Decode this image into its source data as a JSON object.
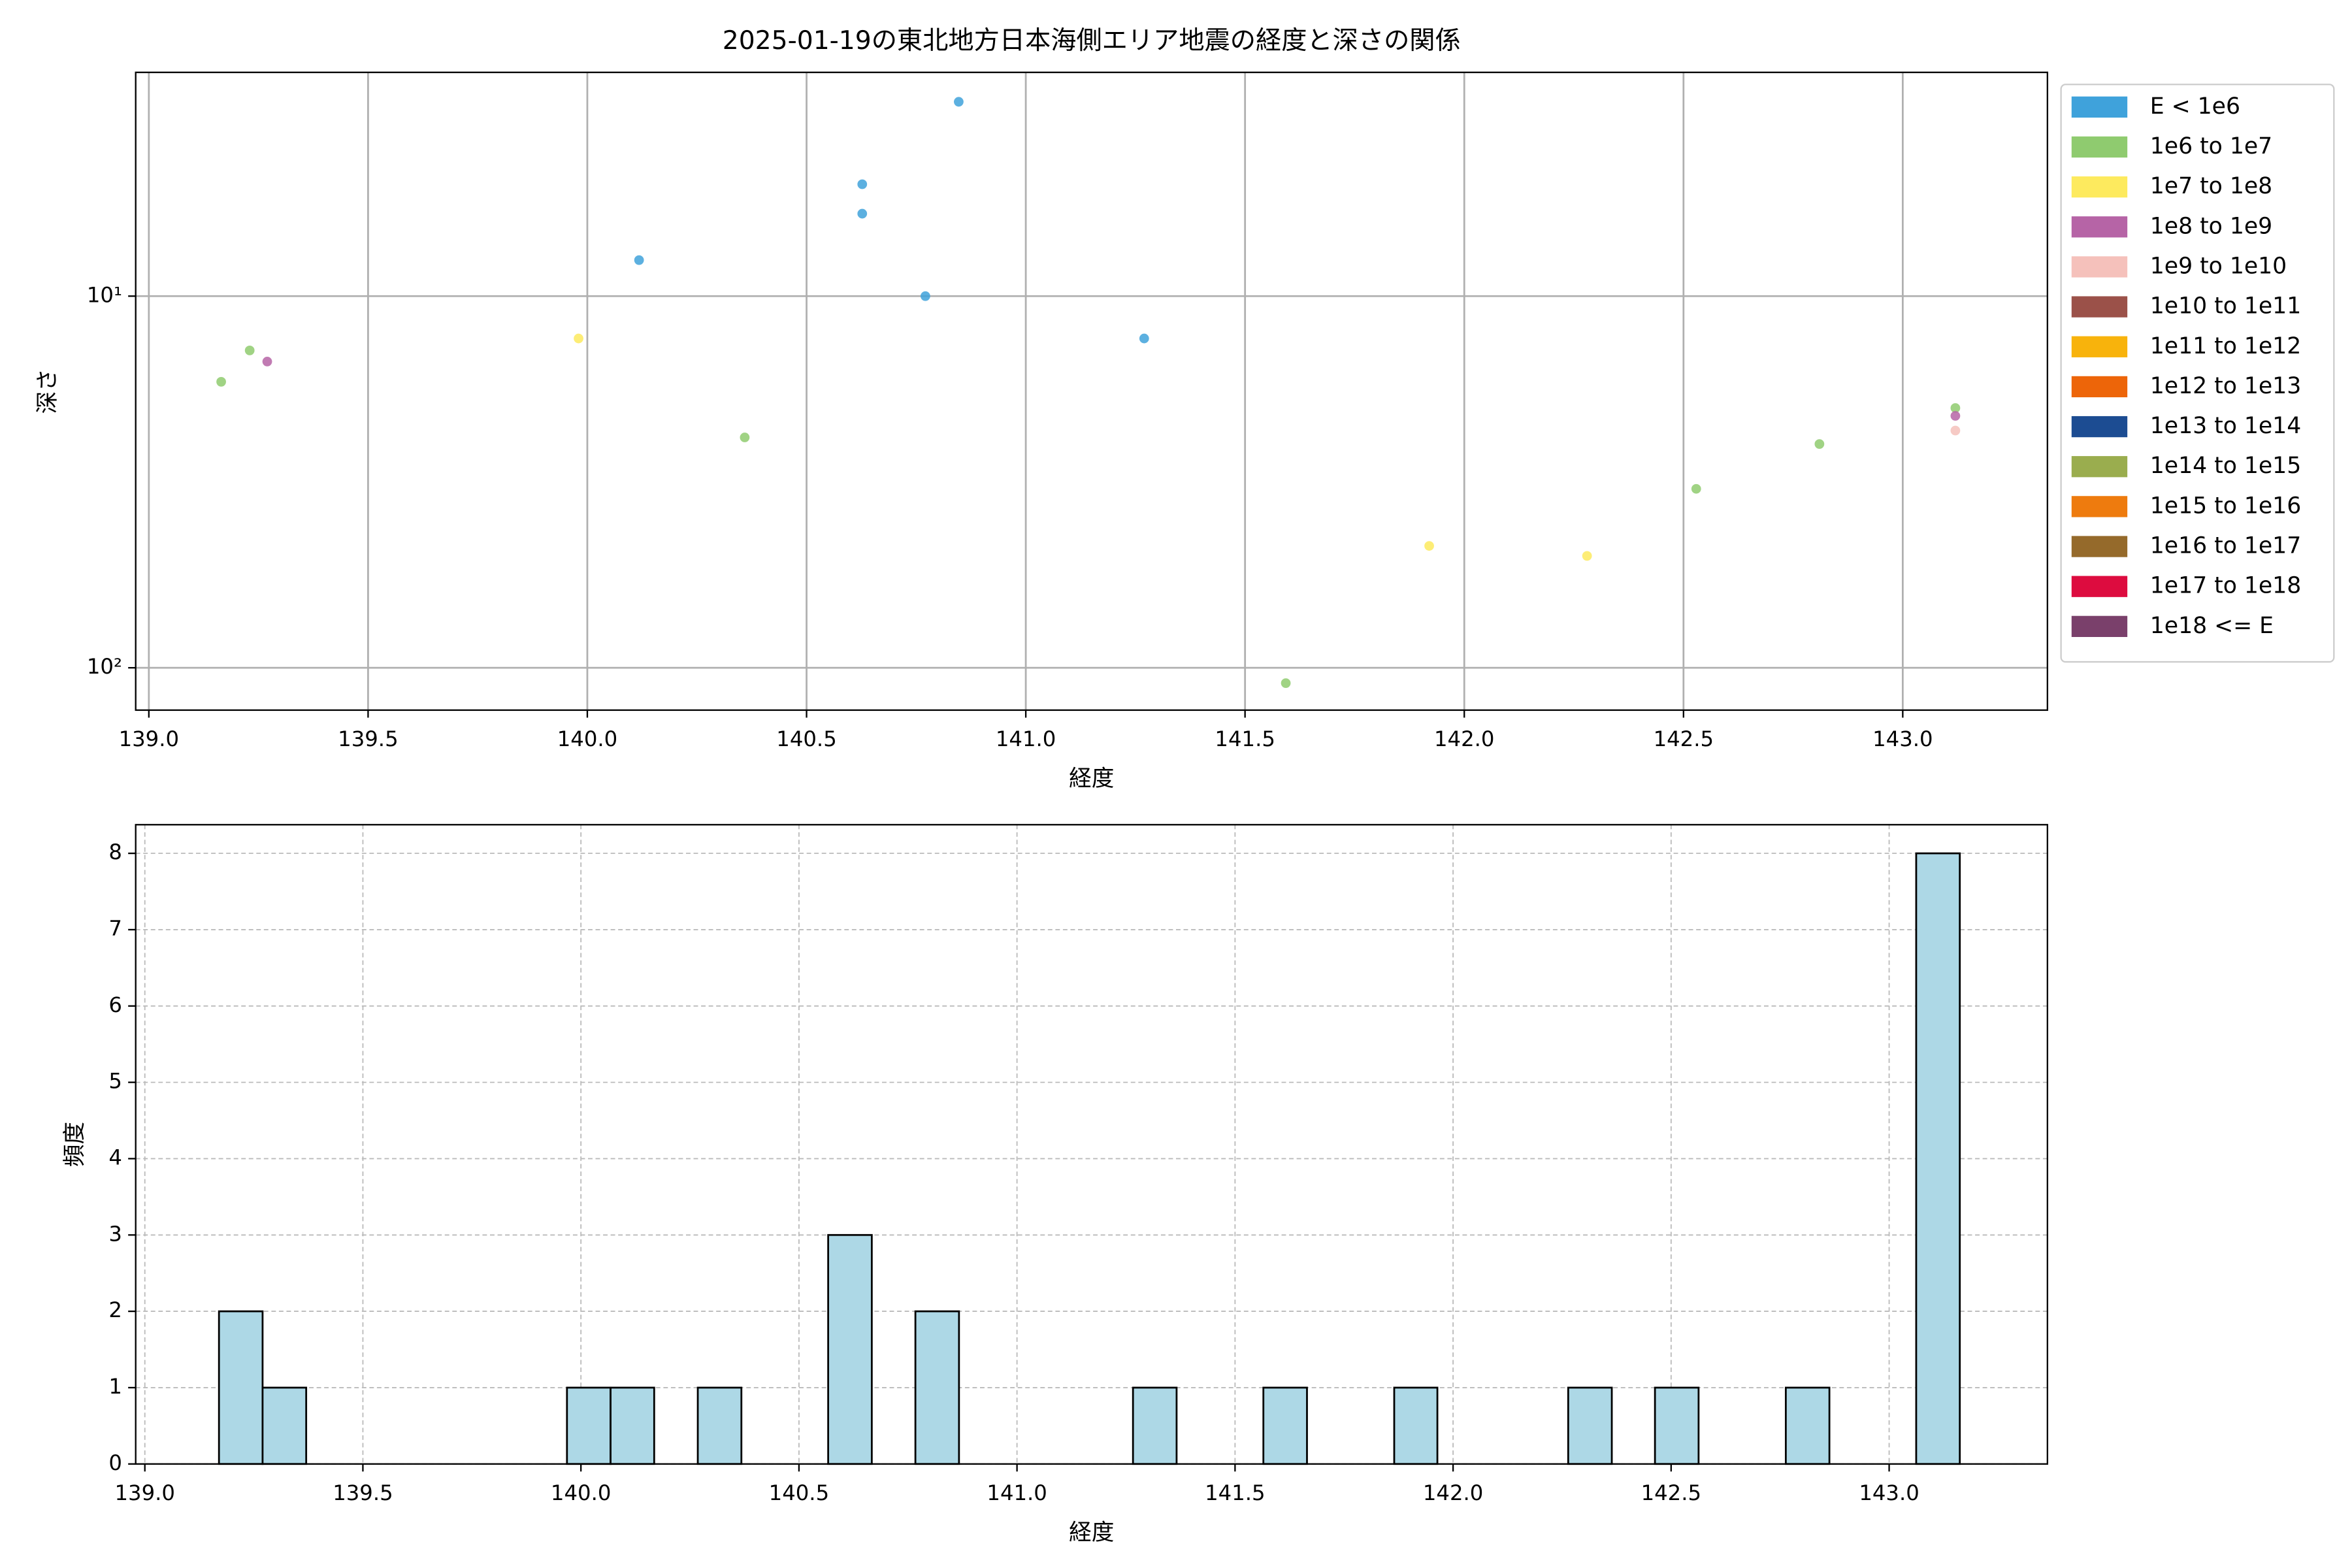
{
  "chart_data": [
    {
      "type": "scatter",
      "title": "2025-01-19の東北地方日本海側エリア地震の経度と深さの関係",
      "xlabel": "経度",
      "ylabel": "深さ",
      "xlim": [
        138.97,
        143.33
      ],
      "ylim": [
        2.5,
        130
      ],
      "y_inverted": true,
      "log_y": true,
      "grid": "solid",
      "xticks": [
        {
          "value": 139,
          "label": "139.0"
        },
        139.5,
        {
          "value": 140,
          "label": "140.0"
        },
        140.5,
        {
          "value": 141,
          "label": "141.0"
        },
        141.5,
        {
          "value": 142,
          "label": "142.0"
        },
        142.5,
        {
          "value": 143,
          "label": "143.0"
        }
      ],
      "yticks": [
        {
          "value": 10,
          "label": "10¹"
        },
        {
          "value": 100,
          "label": "10²"
        }
      ],
      "legend": "outside-right",
      "series": [
        {
          "name": "E < 1e6",
          "color": "#3fa2db",
          "x": [
            140.847,
            140.627,
            140.627,
            140.118,
            140.771,
            141.27
          ],
          "values": [
            3.0,
            5.0,
            6.0,
            8.0,
            10,
            13
          ]
        },
        {
          "name": "1e6 to 1e7",
          "color": "#8fcb6f",
          "x": [
            139.165,
            139.23,
            140.359,
            141.593,
            142.529,
            142.81,
            143.12
          ],
          "values": [
            17,
            14,
            24,
            110,
            33,
            25,
            20
          ]
        },
        {
          "name": "1e7 to 1e8",
          "color": "#fdea5e",
          "x": [
            139.98,
            141.92,
            142.28
          ],
          "values": [
            13,
            47,
            50
          ]
        },
        {
          "name": "1e8 to 1e9",
          "color": "#b664a6",
          "x": [
            139.27,
            143.12
          ],
          "values": [
            15,
            21
          ]
        },
        {
          "name": "1e9 to 1e10",
          "color": "#f5c1bb",
          "x": [
            143.12
          ],
          "values": [
            23
          ]
        },
        {
          "name": "1e10 to 1e11",
          "color": "#9b5149",
          "x": [],
          "values": []
        },
        {
          "name": "1e11 to 1e12",
          "color": "#f8b30c",
          "x": [],
          "values": []
        },
        {
          "name": "1e12 to 1e13",
          "color": "#ed6509",
          "x": [],
          "values": []
        },
        {
          "name": "1e13 to 1e14",
          "color": "#1c4c92",
          "x": [],
          "values": []
        },
        {
          "name": "1e14 to 1e15",
          "color": "#9aad4e",
          "x": [],
          "values": []
        },
        {
          "name": "1e15 to 1e16",
          "color": "#ee7b0e",
          "x": [],
          "values": []
        },
        {
          "name": "1e16 to 1e17",
          "color": "#956a2b",
          "x": [],
          "values": []
        },
        {
          "name": "1e17 to 1e18",
          "color": "#dd0c3f",
          "x": [],
          "values": []
        },
        {
          "name": "1e18 <= E",
          "color": "#7a406b",
          "x": [],
          "values": []
        }
      ]
    },
    {
      "type": "histogram",
      "xlabel": "経度",
      "ylabel": "頻度",
      "color": "#add8e6",
      "xlim": [
        138.979,
        143.363
      ],
      "ylim": [
        0,
        8.375
      ],
      "grid": "dashed",
      "xticks": [
        {
          "value": 139,
          "label": "139.0"
        },
        139.5,
        {
          "value": 140,
          "label": "140.0"
        },
        140.5,
        {
          "value": 141,
          "label": "141.0"
        },
        141.5,
        {
          "value": 142,
          "label": "142.0"
        },
        142.5,
        {
          "value": 143,
          "label": "143.0"
        }
      ],
      "yticks": [
        0,
        1,
        2,
        3,
        4,
        5,
        6,
        7,
        8
      ],
      "bins": [
        139.17,
        139.27,
        139.37,
        139.469,
        139.569,
        139.669,
        139.769,
        139.869,
        139.968,
        140.068,
        140.168,
        140.268,
        140.368,
        140.467,
        140.567,
        140.667,
        140.767,
        140.867,
        140.966,
        141.066,
        141.166,
        141.266,
        141.366,
        141.465,
        141.565,
        141.665,
        141.765,
        141.865,
        141.964,
        142.064,
        142.164,
        142.264,
        142.364,
        142.463,
        142.563,
        142.663,
        142.763,
        142.863,
        142.962,
        143.062,
        143.162
      ],
      "values": [
        2,
        1,
        0,
        0,
        0,
        0,
        0,
        0,
        1,
        1,
        0,
        1,
        0,
        0,
        3,
        0,
        2,
        0,
        0,
        0,
        0,
        1,
        0,
        0,
        1,
        0,
        0,
        1,
        0,
        0,
        0,
        1,
        0,
        1,
        0,
        0,
        1,
        0,
        0,
        8
      ]
    }
  ]
}
